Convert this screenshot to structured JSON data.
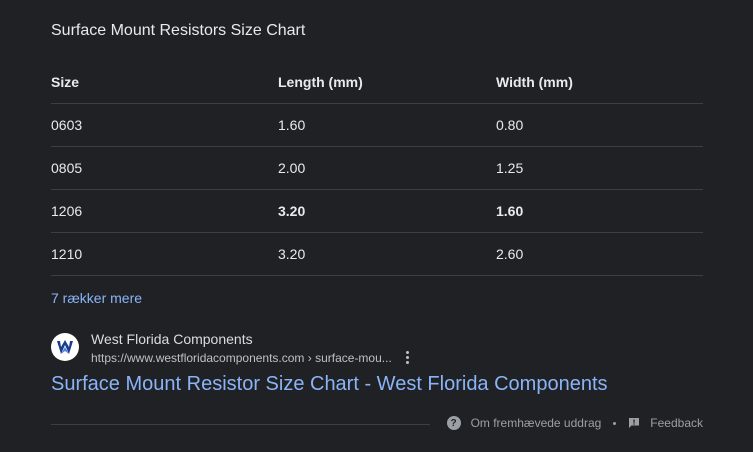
{
  "snippet": {
    "title": "Surface Mount Resistors Size Chart",
    "table": {
      "headers": [
        "Size",
        "Length (mm)",
        "Width (mm)"
      ],
      "rows": [
        [
          "0603",
          "1.60",
          "0.80"
        ],
        [
          "0805",
          "2.00",
          "1.25"
        ],
        [
          "1206",
          "3.20",
          "1.60"
        ],
        [
          "1210",
          "3.20",
          "2.60"
        ]
      ]
    },
    "more_rows_label": "7 rækker mere"
  },
  "source": {
    "site_name": "West Florida Components",
    "url": "https://www.westfloridacomponents.com › surface-mou...",
    "favicon_icon": "west-florida-components-logo",
    "result_title": "Surface Mount Resistor Size Chart - West Florida Components"
  },
  "footer": {
    "about_label": "Om fremhævede uddrag",
    "feedback_label": "Feedback",
    "about_icon": "help-circle-icon",
    "feedback_icon": "feedback-icon"
  },
  "colors": {
    "background": "#202124",
    "text": "#e8eaed",
    "link": "#8ab4f8",
    "muted": "#9aa0a6"
  }
}
